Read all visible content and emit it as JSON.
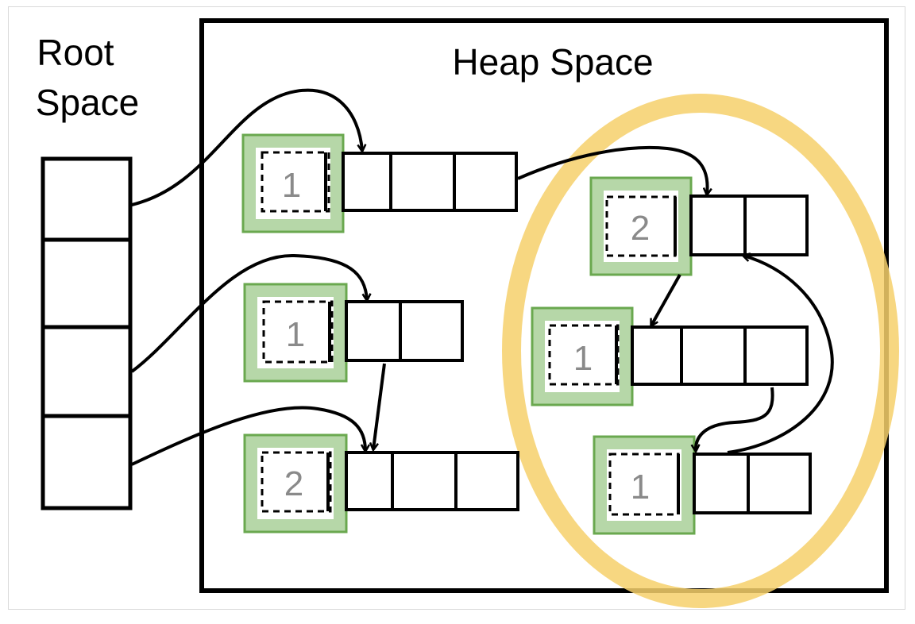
{
  "labels": {
    "root_line1": "Root",
    "root_line2": "Space",
    "heap": "Heap Space"
  },
  "objects": [
    {
      "id": "obj-a",
      "ref_count": "1"
    },
    {
      "id": "obj-b",
      "ref_count": "1"
    },
    {
      "id": "obj-c",
      "ref_count": "2"
    },
    {
      "id": "obj-d",
      "ref_count": "2"
    },
    {
      "id": "obj-e",
      "ref_count": "1"
    },
    {
      "id": "obj-f",
      "ref_count": "1"
    }
  ],
  "colors": {
    "outline": "#000000",
    "counter_border": "#6aa84f",
    "counter_border_light": "#b6d7a8",
    "cycle_ring": "#f6d06b",
    "count_text": "#8a8a8a"
  }
}
